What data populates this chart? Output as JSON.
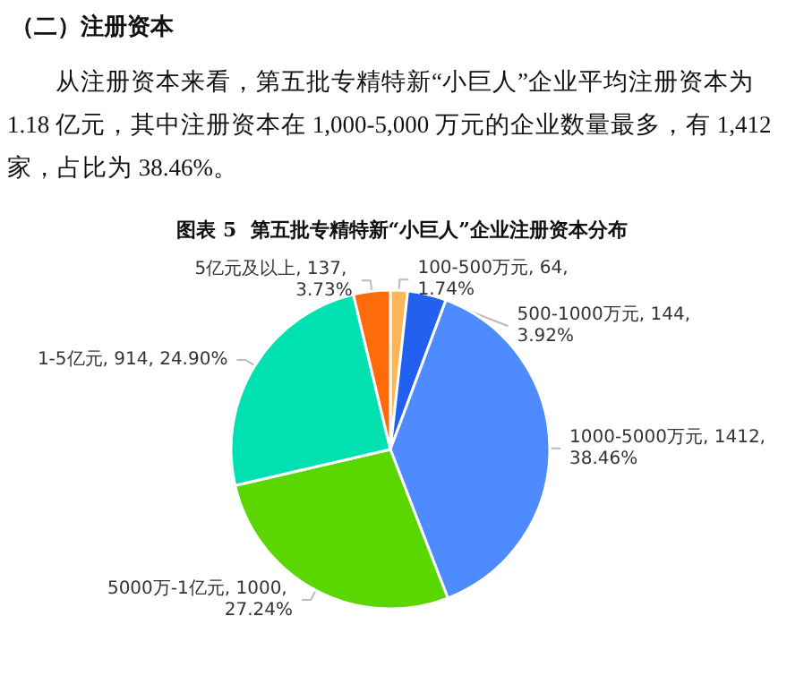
{
  "chart_data": {
    "type": "pie",
    "title": "图表 5  第五批专精特新“小巨人”企业注册资本分布",
    "annotations": [
      "（二）注册资本",
      "从注册资本来看，第五批专精特新“小巨人”企业平均注册资本为 1.18 亿元，其中注册资本在 1,000-5,000 万元的企业数量最多，有 1,412 家，占比为 38.46%。"
    ],
    "categories": [
      "100-500万元",
      "500-1000万元",
      "1000-5000万元",
      "5000万-1亿元",
      "1-5亿元",
      "5亿元及以上"
    ],
    "values": [
      64,
      144,
      1412,
      1000,
      914,
      137
    ],
    "value_labels": [
      "64, 1.74%",
      "144, 3.92%",
      "1412, 38.46%",
      "1000, 27.24%",
      "914, 24.90%",
      "137, 3.73%"
    ],
    "colors": [
      "#fbb55a",
      "#2261f0",
      "#4e8bff",
      "#5ad600",
      "#00e0b0",
      "#ff6a0a"
    ],
    "legend": false
  }
}
